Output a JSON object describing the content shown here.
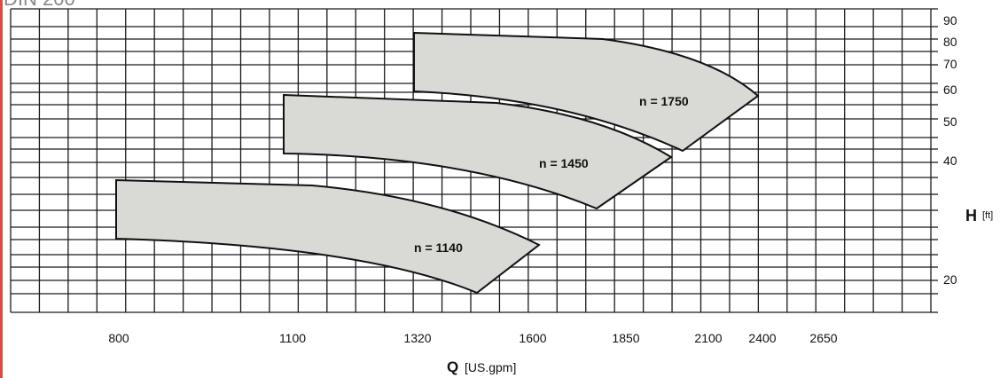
{
  "title_fragment": "DIN 200",
  "chart_data": {
    "type": "area",
    "xlabel_main": "Q",
    "xlabel_unit": "[US.gpm]",
    "ylabel_main": "H",
    "ylabel_unit": "[ft]",
    "x_ticks": [
      "800",
      "1100",
      "1320",
      "1600",
      "1850",
      "2100",
      "2400",
      "2650"
    ],
    "y_ticks": [
      "90",
      "80",
      "70",
      "60",
      "50",
      "40",
      "20"
    ],
    "series": [
      {
        "name": "n = 1140",
        "label": "n = 1140"
      },
      {
        "name": "n = 1450",
        "label": "n = 1450"
      },
      {
        "name": "n = 1750",
        "label": "n = 1750"
      }
    ]
  }
}
